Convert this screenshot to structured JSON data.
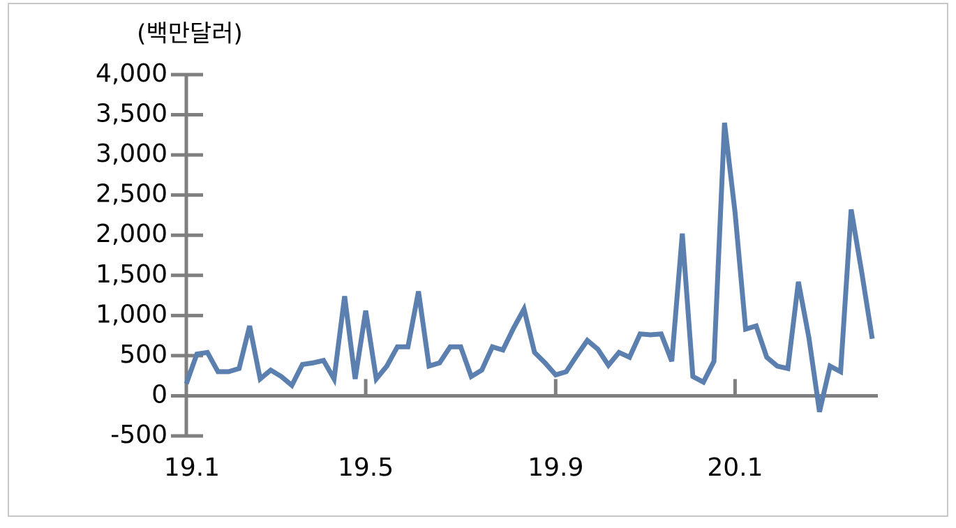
{
  "chart_data": {
    "type": "line",
    "y_label": "(백만달러)",
    "categories": [
      "19.1",
      null,
      null,
      null,
      null,
      null,
      null,
      null,
      null,
      null,
      null,
      null,
      null,
      null,
      null,
      null,
      null,
      "19.5",
      null,
      null,
      null,
      null,
      null,
      null,
      null,
      null,
      null,
      null,
      null,
      null,
      null,
      null,
      null,
      null,
      null,
      "19.9",
      null,
      null,
      null,
      null,
      null,
      null,
      null,
      null,
      null,
      null,
      null,
      null,
      null,
      null,
      null,
      null,
      "20.1",
      null,
      null,
      null,
      null,
      null,
      null,
      null,
      null,
      null,
      null,
      null,
      null,
      null
    ],
    "series": [
      {
        "color": "#5b7fae",
        "values": [
          150,
          520,
          540,
          300,
          300,
          340,
          870,
          210,
          320,
          240,
          130,
          390,
          410,
          440,
          210,
          1240,
          210,
          1060,
          210,
          370,
          610,
          610,
          1300,
          370,
          410,
          610,
          610,
          240,
          320,
          610,
          570,
          840,
          1080,
          540,
          410,
          260,
          300,
          500,
          690,
          580,
          380,
          540,
          480,
          770,
          760,
          770,
          430,
          2020,
          240,
          170,
          430,
          3400,
          2280,
          830,
          870,
          480,
          370,
          340,
          1420,
          720,
          -200,
          370,
          300,
          2320,
          1540,
          710
        ]
      }
    ],
    "ylim": [
      -500,
      4000
    ],
    "yticks": [
      -500,
      0,
      500,
      {
        "value": 1000,
        "label": "1,000"
      },
      {
        "value": 1500,
        "label": "1,500"
      },
      {
        "value": 2000,
        "label": "2,000"
      },
      {
        "value": 2500,
        "label": "2,500"
      },
      {
        "value": 3000,
        "label": "3,000"
      },
      {
        "value": 3500,
        "label": "3,500"
      },
      {
        "value": 4000,
        "label": "4,000"
      }
    ]
  }
}
